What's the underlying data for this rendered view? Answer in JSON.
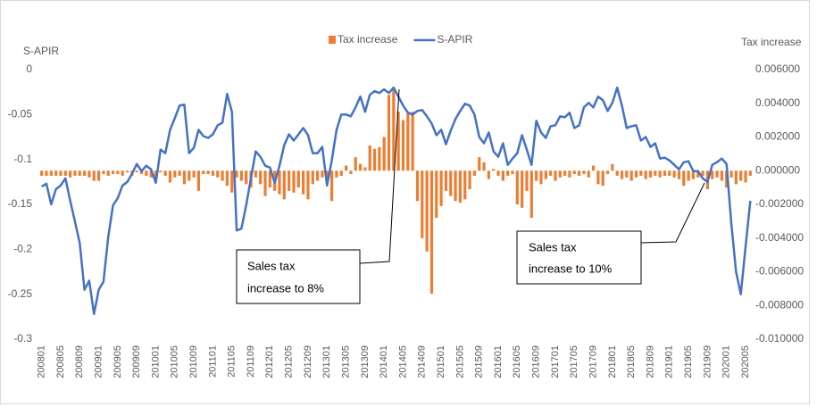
{
  "chart_data": {
    "type": "combo",
    "y_label": "S-APIR",
    "y2_label": "Tax increase",
    "categories": [
      "200801",
      null,
      null,
      null,
      "200805",
      null,
      null,
      null,
      "200809",
      null,
      null,
      null,
      "200901",
      null,
      null,
      null,
      "200905",
      null,
      null,
      null,
      "200909",
      null,
      null,
      null,
      "201001",
      null,
      null,
      null,
      "201005",
      null,
      null,
      null,
      "201009",
      null,
      null,
      null,
      "201101",
      null,
      null,
      null,
      "201105",
      null,
      null,
      null,
      "201109",
      null,
      null,
      null,
      "201201",
      null,
      null,
      null,
      "201205",
      null,
      null,
      null,
      "201209",
      null,
      null,
      null,
      "201301",
      null,
      null,
      null,
      "201305",
      null,
      null,
      null,
      "201309",
      null,
      null,
      null,
      "201401",
      null,
      null,
      null,
      "201405",
      null,
      null,
      null,
      "201409",
      null,
      null,
      null,
      "201501",
      null,
      null,
      null,
      "201505",
      null,
      null,
      null,
      "201509",
      null,
      null,
      null,
      "201601",
      null,
      null,
      null,
      "201605",
      null,
      null,
      null,
      "201609",
      null,
      null,
      null,
      "201701",
      null,
      null,
      null,
      "201705",
      null,
      null,
      null,
      "201709",
      null,
      null,
      null,
      "201801",
      null,
      null,
      null,
      "201805",
      null,
      null,
      null,
      "201809",
      null,
      null,
      null,
      "201901",
      null,
      null,
      null,
      "201905",
      null,
      null,
      null,
      "201909",
      null,
      null,
      null,
      "202001",
      null,
      null,
      null,
      "202005",
      null
    ],
    "series": [
      {
        "name": "Tax increase",
        "type": "bar",
        "axis": "y2",
        "color": "#ed7d31",
        "values": [
          -0.0003,
          -0.0003,
          -0.0003,
          -0.0003,
          -0.0003,
          -0.0003,
          -0.0004,
          -0.0003,
          -0.0003,
          -0.0003,
          -0.0004,
          -0.0006,
          -0.0006,
          -0.0002,
          -0.0003,
          -0.0002,
          -0.0002,
          -0.0003,
          -0.0001,
          -0.0003,
          -0.0001,
          -0.0002,
          -0.0003,
          -0.0004,
          -0.0005,
          -0.0001,
          -0.0003,
          -0.0007,
          -0.0004,
          -0.0003,
          -0.0008,
          -0.0006,
          -0.0004,
          -0.0012,
          -0.0002,
          -0.0002,
          -0.0003,
          -0.0004,
          -0.0006,
          -0.0009,
          -0.0013,
          -0.0004,
          -0.0006,
          -0.0008,
          -0.001,
          -0.0004,
          -0.0008,
          -0.0015,
          -0.001,
          -0.0012,
          -0.0014,
          -0.0017,
          -0.0012,
          -0.0013,
          -0.001,
          -0.0014,
          -0.0017,
          -0.0008,
          -0.0006,
          -0.0004,
          -0.0006,
          -0.0018,
          -0.0004,
          -0.0003,
          0.0003,
          -0.0002,
          0.0008,
          0.0004,
          0.0002,
          0.0015,
          0.0013,
          0.0014,
          0.002,
          0.0045,
          0.0048,
          0.0035,
          0.003,
          0.0034,
          0.0035,
          -0.0018,
          -0.004,
          -0.0048,
          -0.0073,
          -0.0028,
          -0.0021,
          -0.0012,
          -0.0015,
          -0.0018,
          -0.0019,
          -0.0017,
          -0.0011,
          -0.0003,
          0.0008,
          0.0005,
          -0.0005,
          0.0001,
          -0.0003,
          -0.0006,
          -0.0003,
          -0.0002,
          -0.002,
          -0.0022,
          -0.0012,
          -0.0028,
          -0.0006,
          -0.0008,
          -0.0005,
          -0.0003,
          -0.0006,
          -0.0004,
          -0.0003,
          -0.0004,
          -0.0002,
          -0.0003,
          -0.0002,
          -0.0004,
          0.0003,
          -0.0008,
          -0.0009,
          -0.0002,
          0.0004,
          -0.0003,
          -0.0005,
          -0.0004,
          -0.0006,
          -0.0004,
          -0.0003,
          -0.0005,
          -0.0004,
          -0.0003,
          -0.0004,
          -0.0003,
          -0.0003,
          -0.0004,
          -0.0005,
          -0.0009,
          -0.0006,
          -0.0005,
          -0.0004,
          -0.0003,
          -0.0011,
          -0.0005,
          -0.0004,
          -0.0006,
          -0.001,
          -0.0004,
          -0.0008,
          -0.0006,
          -0.0007,
          -0.0003
        ]
      },
      {
        "name": "S-APIR",
        "type": "line",
        "axis": "y",
        "color": "#4472c4",
        "values": [
          -0.13,
          -0.127,
          -0.15,
          -0.133,
          -0.129,
          -0.121,
          -0.146,
          -0.169,
          -0.193,
          -0.245,
          -0.235,
          -0.272,
          -0.245,
          -0.236,
          -0.186,
          -0.151,
          -0.143,
          -0.129,
          -0.125,
          -0.116,
          -0.105,
          -0.113,
          -0.107,
          -0.111,
          -0.126,
          -0.089,
          -0.093,
          -0.067,
          -0.054,
          -0.04,
          -0.039,
          -0.093,
          -0.087,
          -0.067,
          -0.074,
          -0.076,
          -0.072,
          -0.062,
          -0.059,
          -0.027,
          -0.047,
          -0.179,
          -0.177,
          -0.151,
          -0.121,
          -0.091,
          -0.097,
          -0.107,
          -0.109,
          -0.126,
          -0.107,
          -0.084,
          -0.072,
          -0.079,
          -0.072,
          -0.065,
          -0.073,
          -0.093,
          -0.093,
          -0.086,
          -0.129,
          -0.101,
          -0.067,
          -0.05,
          -0.05,
          -0.052,
          -0.042,
          -0.03,
          -0.047,
          -0.028,
          -0.024,
          -0.026,
          -0.022,
          -0.026,
          -0.02,
          -0.03,
          -0.04,
          -0.048,
          -0.05,
          -0.046,
          -0.045,
          -0.052,
          -0.06,
          -0.073,
          -0.067,
          -0.083,
          -0.068,
          -0.055,
          -0.046,
          -0.038,
          -0.04,
          -0.05,
          -0.075,
          -0.082,
          -0.07,
          -0.091,
          -0.097,
          -0.082,
          -0.106,
          -0.099,
          -0.093,
          -0.073,
          -0.089,
          -0.106,
          -0.057,
          -0.07,
          -0.076,
          -0.063,
          -0.062,
          -0.052,
          -0.053,
          -0.048,
          -0.065,
          -0.062,
          -0.042,
          -0.037,
          -0.042,
          -0.03,
          -0.034,
          -0.046,
          -0.037,
          -0.02,
          -0.04,
          -0.065,
          -0.063,
          -0.062,
          -0.079,
          -0.075,
          -0.086,
          -0.082,
          -0.099,
          -0.098,
          -0.101,
          -0.106,
          -0.111,
          -0.103,
          -0.102,
          -0.113,
          -0.113,
          -0.121,
          -0.125,
          -0.106,
          -0.103,
          -0.099,
          -0.105,
          -0.171,
          -0.225,
          -0.25,
          -0.197,
          -0.146
        ]
      }
    ],
    "ylim": [
      -0.3,
      0
    ],
    "yticks": [
      0,
      -0.05,
      -0.1,
      -0.15,
      -0.2,
      -0.25,
      -0.3
    ],
    "y2lim": [
      -0.01,
      0.006
    ],
    "y2ticks": [
      {
        "value": 0.006,
        "label": "0.006000"
      },
      {
        "value": 0.004,
        "label": "0.004000"
      },
      {
        "value": 0.002,
        "label": "0.002000"
      },
      {
        "value": 0,
        "label": "0.000000"
      },
      {
        "value": -0.002,
        "label": "-0.002000"
      },
      {
        "value": -0.004,
        "label": "-0.004000"
      },
      {
        "value": -0.006,
        "label": "-0.006000"
      },
      {
        "value": -0.008,
        "label": "-0.008000"
      },
      {
        "value": -0.01,
        "label": "-0.010000"
      }
    ],
    "grid": false,
    "legend": "top",
    "annotations": [
      {
        "lines": [
          "Sales tax",
          "increase to 8%"
        ]
      },
      {
        "lines": [
          "Sales tax",
          "increase to 10%"
        ]
      }
    ]
  }
}
